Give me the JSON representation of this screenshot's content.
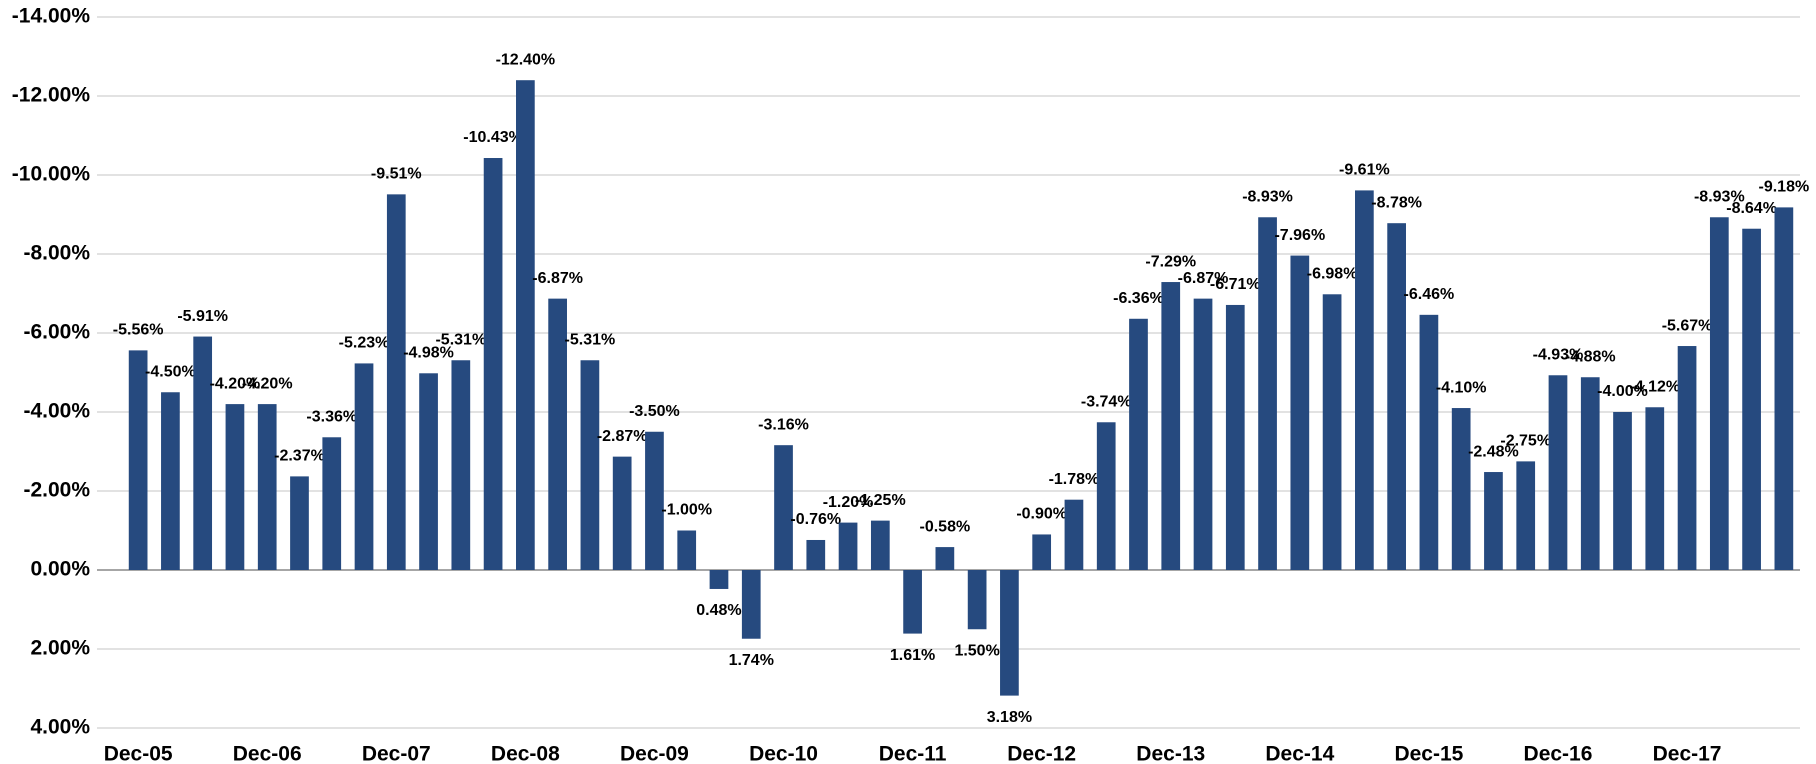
{
  "chart_data": {
    "type": "bar",
    "categories": [
      "Dec-05",
      null,
      null,
      null,
      "Dec-06",
      null,
      null,
      null,
      "Dec-07",
      null,
      null,
      null,
      "Dec-08",
      null,
      null,
      null,
      "Dec-09",
      null,
      null,
      null,
      "Dec-10",
      null,
      null,
      null,
      "Dec-11",
      null,
      null,
      null,
      "Dec-12",
      null,
      null,
      null,
      "Dec-13",
      null,
      null,
      null,
      "Dec-14",
      null,
      null,
      null,
      "Dec-15",
      null,
      null,
      null,
      "Dec-16",
      null,
      null,
      null,
      "Dec-17",
      null,
      null,
      null
    ],
    "values": [
      -5.56,
      -4.5,
      -5.91,
      -4.2,
      -4.2,
      -2.37,
      -3.36,
      -5.23,
      -9.51,
      -4.98,
      -5.31,
      -10.43,
      -12.4,
      -6.87,
      -5.31,
      -2.87,
      -3.5,
      -1.0,
      0.48,
      1.74,
      -3.16,
      -0.76,
      -1.2,
      -1.25,
      1.61,
      -0.58,
      1.5,
      3.18,
      -0.9,
      -1.78,
      -3.74,
      -6.36,
      -7.29,
      -6.87,
      -6.71,
      -8.93,
      -7.96,
      -6.98,
      -9.61,
      -8.78,
      -6.46,
      -4.1,
      -2.48,
      -2.75,
      -4.93,
      -4.88,
      -4.0,
      -4.12,
      -5.67,
      -8.93,
      -8.64,
      -9.18
    ],
    "value_labels": [
      "-5.56%",
      "-4.50%",
      "-5.91%",
      "-4.20%",
      "-4.20%",
      "-2.37%",
      "-3.36%",
      "-5.23%",
      "-9.51%",
      "-4.98%",
      "-5.31%",
      "-10.43%",
      "-12.40%",
      "-6.87%",
      "-5.31%",
      "-2.87%",
      "-3.50%",
      "-1.00%",
      "0.48%",
      "1.74%",
      "-3.16%",
      "-0.76%",
      "-1.20%",
      "-1.25%",
      "1.61%",
      "-0.58%",
      "1.50%",
      "3.18%",
      "-0.90%",
      "-1.78%",
      "-3.74%",
      "-6.36%",
      "-7.29%",
      "-6.87%",
      "-6.71%",
      "-8.93%",
      "-7.96%",
      "-6.98%",
      "-9.61%",
      "-8.78%",
      "-6.46%",
      "-4.10%",
      "-2.48%",
      "-2.75%",
      "-4.93%",
      "-4.88%",
      "-4.00%",
      "-4.12%",
      "-5.67%",
      "-8.93%",
      "-8.64%",
      "-9.18%"
    ],
    "color": "#264a7f",
    "ylim": [
      -14,
      4
    ],
    "y_reversed": true,
    "yticks": [
      {
        "value": -14,
        "label": "-14.00%"
      },
      {
        "value": -12,
        "label": "-12.00%"
      },
      {
        "value": -10,
        "label": "-10.00%"
      },
      {
        "value": -8,
        "label": "-8.00%"
      },
      {
        "value": -6,
        "label": "-6.00%"
      },
      {
        "value": -4,
        "label": "-4.00%"
      },
      {
        "value": -2,
        "label": "-2.00%"
      },
      {
        "value": 0,
        "label": "0.00%"
      },
      {
        "value": 2,
        "label": "2.00%"
      },
      {
        "value": 4,
        "label": "4.00%"
      }
    ],
    "grid": true
  }
}
